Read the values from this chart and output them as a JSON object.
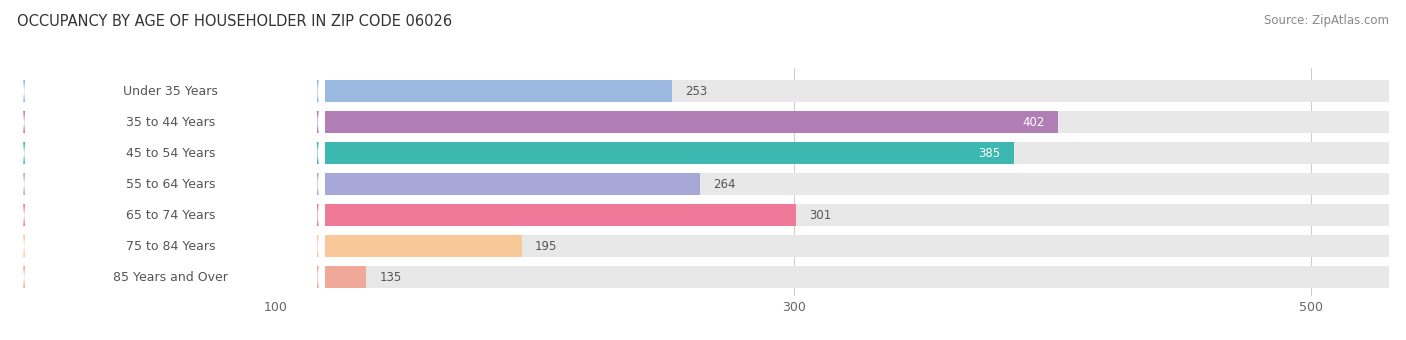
{
  "title": "OCCUPANCY BY AGE OF HOUSEHOLDER IN ZIP CODE 06026",
  "source": "Source: ZipAtlas.com",
  "categories": [
    "Under 35 Years",
    "35 to 44 Years",
    "45 to 54 Years",
    "55 to 64 Years",
    "65 to 74 Years",
    "75 to 84 Years",
    "85 Years and Over"
  ],
  "values": [
    253,
    402,
    385,
    264,
    301,
    195,
    135
  ],
  "bar_colors": [
    "#9ab8e0",
    "#b07db5",
    "#3db8b0",
    "#a8a8d8",
    "#f07898",
    "#f8c898",
    "#f0a898"
  ],
  "label_text_color": "#555555",
  "value_label_color_inside": "#ffffff",
  "value_label_color_outside": "#555555",
  "xlim_data": [
    0,
    530
  ],
  "xticks": [
    100,
    300,
    500
  ],
  "title_fontsize": 10.5,
  "source_fontsize": 8.5,
  "label_fontsize": 9,
  "value_fontsize": 8.5,
  "background_color": "#ffffff",
  "bar_bg_color": "#e8e8e8",
  "inside_value_threshold": 350
}
